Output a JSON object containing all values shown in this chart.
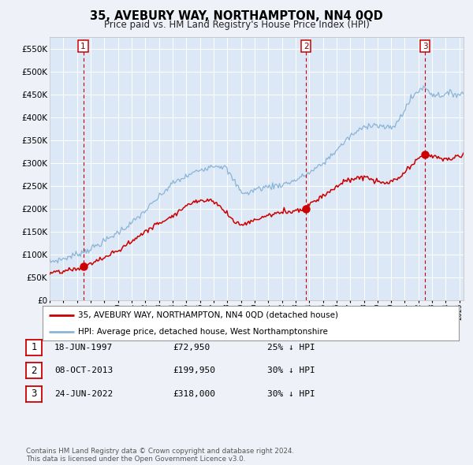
{
  "title": "35, AVEBURY WAY, NORTHAMPTON, NN4 0QD",
  "subtitle": "Price paid vs. HM Land Registry's House Price Index (HPI)",
  "background_color": "#eef2f8",
  "plot_bg_color": "#dce8f5",
  "grid_color": "#ffffff",
  "hpi_color": "#8ab4d8",
  "price_color": "#cc0000",
  "vline_color": "#cc0000",
  "ylim": [
    0,
    575000
  ],
  "yticks": [
    0,
    50000,
    100000,
    150000,
    200000,
    250000,
    300000,
    350000,
    400000,
    450000,
    500000,
    550000
  ],
  "ytick_labels": [
    "£0",
    "£50K",
    "£100K",
    "£150K",
    "£200K",
    "£250K",
    "£300K",
    "£350K",
    "£400K",
    "£450K",
    "£500K",
    "£550K"
  ],
  "sale_points": [
    {
      "label": "1",
      "date_num": 1997.46,
      "price": 72950
    },
    {
      "label": "2",
      "date_num": 2013.77,
      "price": 199950
    },
    {
      "label": "3",
      "date_num": 2022.48,
      "price": 318000
    }
  ],
  "legend_entries": [
    "35, AVEBURY WAY, NORTHAMPTON, NN4 0QD (detached house)",
    "HPI: Average price, detached house, West Northamptonshire"
  ],
  "table_rows": [
    {
      "num": "1",
      "date": "18-JUN-1997",
      "price": "£72,950",
      "hpi": "25% ↓ HPI"
    },
    {
      "num": "2",
      "date": "08-OCT-2013",
      "price": "£199,950",
      "hpi": "30% ↓ HPI"
    },
    {
      "num": "3",
      "date": "24-JUN-2022",
      "price": "£318,000",
      "hpi": "30% ↓ HPI"
    }
  ],
  "footer": "Contains HM Land Registry data © Crown copyright and database right 2024.\nThis data is licensed under the Open Government Licence v3.0."
}
